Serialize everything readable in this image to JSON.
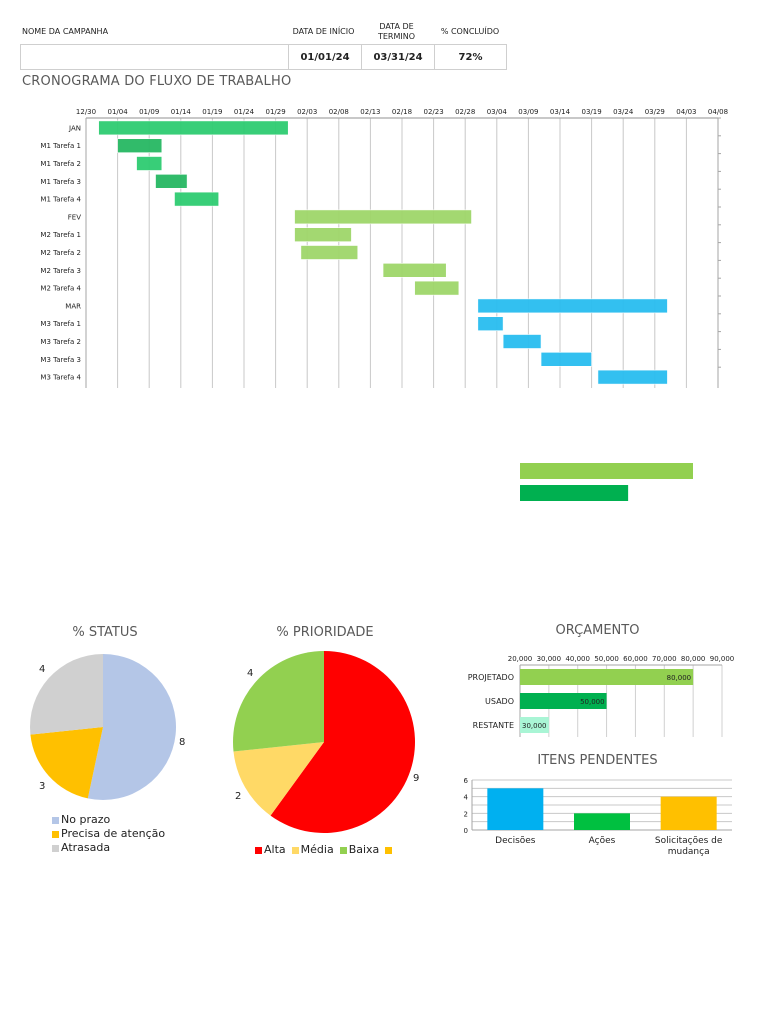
{
  "header": {
    "campaign_name_label": "NOME DA CAMPANHA",
    "start_date_label": "DATA DE INÍCIO",
    "end_date_label_line1": "DATA DE",
    "end_date_label_line2": "TERMINO",
    "percent_label": "% CONCLUÍDO",
    "campaign_name_value": "",
    "start_date_value": "01/01/24",
    "end_date_value": "03/31/24",
    "percent_value": "72%"
  },
  "workflow": {
    "title": "CRONOGRAMA DO FLUXO DE TRABALHO"
  },
  "status_chart": {
    "title": "% STATUS"
  },
  "priority_chart": {
    "title": "% PRIORIDADE"
  },
  "budget_chart": {
    "title": "ORÇAMENTO"
  },
  "pending_chart": {
    "title": "ITENS PENDENTES"
  },
  "colors": {
    "jan": "#2ecc71",
    "jan_task_dark": "#27b863",
    "fev": "#9fd66a",
    "mar": "#29bdf0",
    "no_prazo": "#b4c6e7",
    "precisa_atencao": "#ffc000",
    "atrasada": "#d0d0d0",
    "alta": "#ff0000",
    "media": "#ffd966",
    "baixa": "#92d050",
    "projetado": "#92d050",
    "usado": "#00b050",
    "restante": "#a9f5d5",
    "decisoes": "#00b0f0",
    "acoes": "#00c040",
    "solicitacoes": "#ffc000"
  },
  "chart_data": [
    {
      "type": "bar",
      "subtype": "gantt",
      "title": "CRONOGRAMA DO FLUXO DE TRABALHO",
      "x_ticks": [
        "12/30",
        "01/04",
        "01/09",
        "01/14",
        "01/19",
        "01/24",
        "01/29",
        "02/03",
        "02/08",
        "02/13",
        "02/18",
        "02/23",
        "02/28",
        "03/04",
        "03/09",
        "03/14",
        "03/19",
        "03/24",
        "03/29",
        "04/03",
        "04/08"
      ],
      "x_start": "12/30",
      "x_range_days": [
        0,
        100
      ],
      "tasks": [
        {
          "label": "JAN",
          "start": "01/01",
          "end": "01/31",
          "start_day": 2,
          "end_day": 32,
          "group": "jan"
        },
        {
          "label": "M1 Tarefa 1",
          "start": "01/04",
          "end": "01/11",
          "start_day": 5,
          "end_day": 12,
          "group": "jan_task_dark"
        },
        {
          "label": "M1 Tarefa 2",
          "start": "01/07",
          "end": "01/11",
          "start_day": 8,
          "end_day": 12,
          "group": "jan"
        },
        {
          "label": "M1 Tarefa 3",
          "start": "01/10",
          "end": "01/15",
          "start_day": 11,
          "end_day": 16,
          "group": "jan_task_dark"
        },
        {
          "label": "M1 Tarefa 4",
          "start": "01/13",
          "end": "01/20",
          "start_day": 14,
          "end_day": 21,
          "group": "jan"
        },
        {
          "label": "FEV",
          "start": "02/01",
          "end": "02/29",
          "start_day": 33,
          "end_day": 61,
          "group": "fev"
        },
        {
          "label": "M2 Tarefa 1",
          "start": "02/01",
          "end": "02/10",
          "start_day": 33,
          "end_day": 42,
          "group": "fev"
        },
        {
          "label": "M2 Tarefa 2",
          "start": "02/02",
          "end": "02/11",
          "start_day": 34,
          "end_day": 43,
          "group": "fev"
        },
        {
          "label": "M2 Tarefa 3",
          "start": "02/15",
          "end": "02/25",
          "start_day": 47,
          "end_day": 57,
          "group": "fev"
        },
        {
          "label": "M2 Tarefa 4",
          "start": "02/20",
          "end": "02/27",
          "start_day": 52,
          "end_day": 59,
          "group": "fev"
        },
        {
          "label": "MAR",
          "start": "03/01",
          "end": "03/31",
          "start_day": 62,
          "end_day": 92,
          "group": "mar"
        },
        {
          "label": "M3 Tarefa 1",
          "start": "03/01",
          "end": "03/05",
          "start_day": 62,
          "end_day": 66,
          "group": "mar"
        },
        {
          "label": "M3 Tarefa 2",
          "start": "03/05",
          "end": "03/11",
          "start_day": 66,
          "end_day": 72,
          "group": "mar"
        },
        {
          "label": "M3 Tarefa 3",
          "start": "03/11",
          "end": "03/19",
          "start_day": 72,
          "end_day": 80,
          "group": "mar"
        },
        {
          "label": "M3 Tarefa 4",
          "start": "03/20",
          "end": "03/31",
          "start_day": 81,
          "end_day": 92,
          "group": "mar"
        }
      ]
    },
    {
      "type": "bar",
      "subtype": "horizontal-unlabeled",
      "title": "",
      "categories": [
        "PROJETADO",
        "USADO"
      ],
      "values": [
        80000,
        50000
      ]
    },
    {
      "type": "pie",
      "title": "% STATUS",
      "categories": [
        "No prazo",
        "Precisa de atenção",
        "Atrasada"
      ],
      "values": [
        8,
        3,
        4
      ],
      "legend_position": "bottom"
    },
    {
      "type": "pie",
      "title": "% PRIORIDADE",
      "categories": [
        "Alta",
        "Média",
        "Baixa",
        ""
      ],
      "values": [
        9,
        2,
        4,
        0
      ],
      "legend_position": "bottom"
    },
    {
      "type": "bar",
      "subtype": "horizontal",
      "title": "ORÇAMENTO",
      "categories": [
        "PROJETADO",
        "USADO",
        "RESTANTE"
      ],
      "values": [
        80000,
        50000,
        30000
      ],
      "data_labels": [
        "80,000",
        "50,000",
        "30,000"
      ],
      "x_ticks": [
        "20,000",
        "30,000",
        "40,000",
        "50,000",
        "60,000",
        "70,000",
        "80,000",
        "90,000"
      ],
      "xlim": [
        20000,
        90000
      ],
      "grid": true
    },
    {
      "type": "bar",
      "title": "ITENS PENDENTES",
      "categories": [
        "Decisões",
        "Ações",
        "Solicitações de mudança"
      ],
      "values": [
        5,
        2,
        4
      ],
      "y_ticks": [
        "0",
        "2",
        "4",
        "6"
      ],
      "ylim": [
        0,
        6
      ],
      "grid": true
    }
  ]
}
